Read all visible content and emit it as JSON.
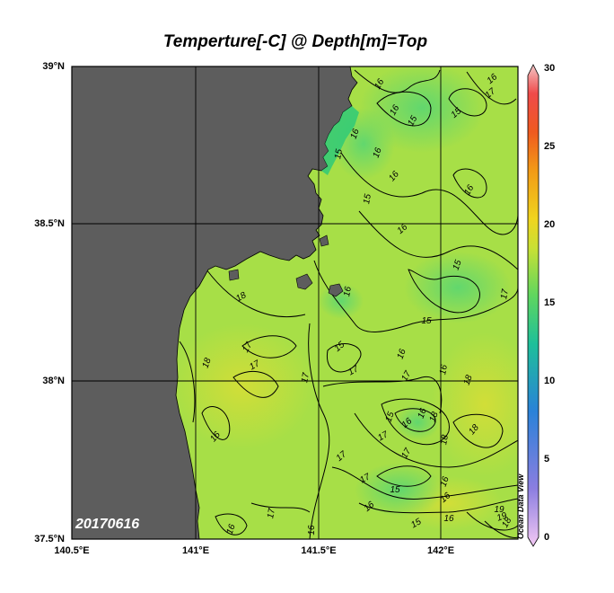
{
  "title": "Temperture[-C] @ Depth[m]=Top",
  "date_label": "20170616",
  "watermark": "Ocean Data View",
  "lat_labels": [
    "39°N",
    "38.5°N",
    "38°N",
    "37.5°N"
  ],
  "lon_labels": [
    "140.5°E",
    "141°E",
    "141.5°E",
    "142°E"
  ],
  "colorbar": {
    "ticks": [
      "30",
      "25",
      "20",
      "15",
      "10",
      "5",
      "0"
    ],
    "min": 0,
    "max": 30
  },
  "colors": {
    "land": "#5d5d5d",
    "water_base": "#a7df47",
    "water_warm": "#d2de3a",
    "water_cool": "#66d86c",
    "coast_cold": "#2fca78"
  },
  "contour_labels": [
    "16",
    "16",
    "15",
    "16",
    "17",
    "15",
    "15",
    "16",
    "16",
    "16",
    "15",
    "16",
    "16",
    "15",
    "17",
    "18",
    "15",
    "16",
    "15",
    "17",
    "17",
    "18",
    "17",
    "16",
    "17",
    "17",
    "16",
    "15",
    "16",
    "16",
    "18",
    "17",
    "18",
    "17",
    "18",
    "16",
    "15",
    "17",
    "17",
    "16",
    "18",
    "16",
    "16",
    "15",
    "17",
    "16",
    "18",
    "19",
    "19",
    "16",
    "16"
  ]
}
